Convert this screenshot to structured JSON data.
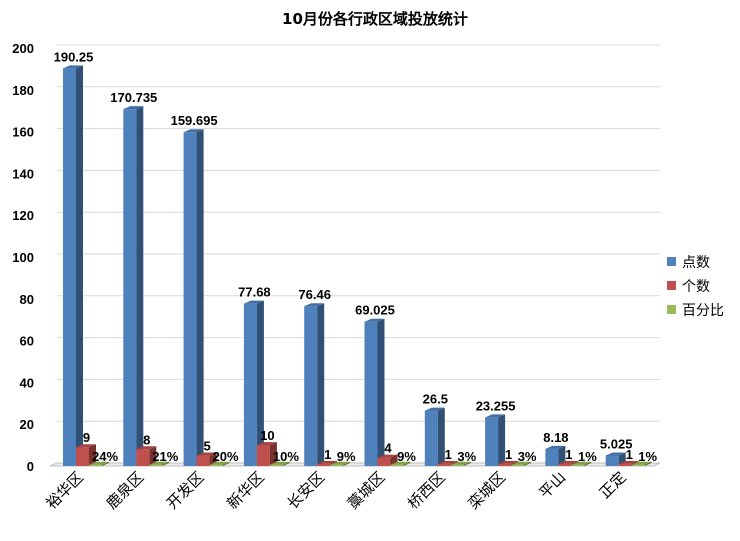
{
  "chart_data": {
    "type": "bar",
    "title": "10月份各行政区域投放统计",
    "categories": [
      "裕华区",
      "鹿泉区",
      "开发区",
      "新华区",
      "长安区",
      "藁城区",
      "桥西区",
      "栾城区",
      "平山",
      "正定"
    ],
    "series": [
      {
        "name": "点数",
        "color": "#4F81BD",
        "values": [
          190.25,
          170.735,
          159.695,
          77.68,
          76.46,
          69.025,
          26.5,
          23.255,
          8.18,
          5.025
        ],
        "labels": [
          "190.25",
          "170.735",
          "159.695",
          "77.68",
          "76.46",
          "69.025",
          "26.5",
          "23.255",
          "8.18",
          "5.025"
        ]
      },
      {
        "name": "个数",
        "color": "#C0504D",
        "values": [
          9,
          8,
          5,
          10,
          1,
          4,
          1,
          1,
          1,
          1
        ],
        "labels": [
          "9",
          "8",
          "5",
          "10",
          "1",
          "4",
          "1",
          "1",
          "1",
          "1"
        ]
      },
      {
        "name": "百分比",
        "color": "#9BBB59",
        "values": [
          0.24,
          0.21,
          0.2,
          0.1,
          0.09,
          0.09,
          0.03,
          0.03,
          0.01,
          0.01
        ],
        "labels": [
          "24%",
          "21%",
          "20%",
          "10%",
          "9%",
          "9%",
          "3%",
          "3%",
          "1%",
          "1%"
        ]
      }
    ],
    "ylim": [
      0,
      200
    ],
    "yticks": [
      0,
      20,
      40,
      60,
      80,
      100,
      120,
      140,
      160,
      180,
      200
    ],
    "grid": true,
    "legend": "right",
    "style": "3d-clustered-column"
  }
}
